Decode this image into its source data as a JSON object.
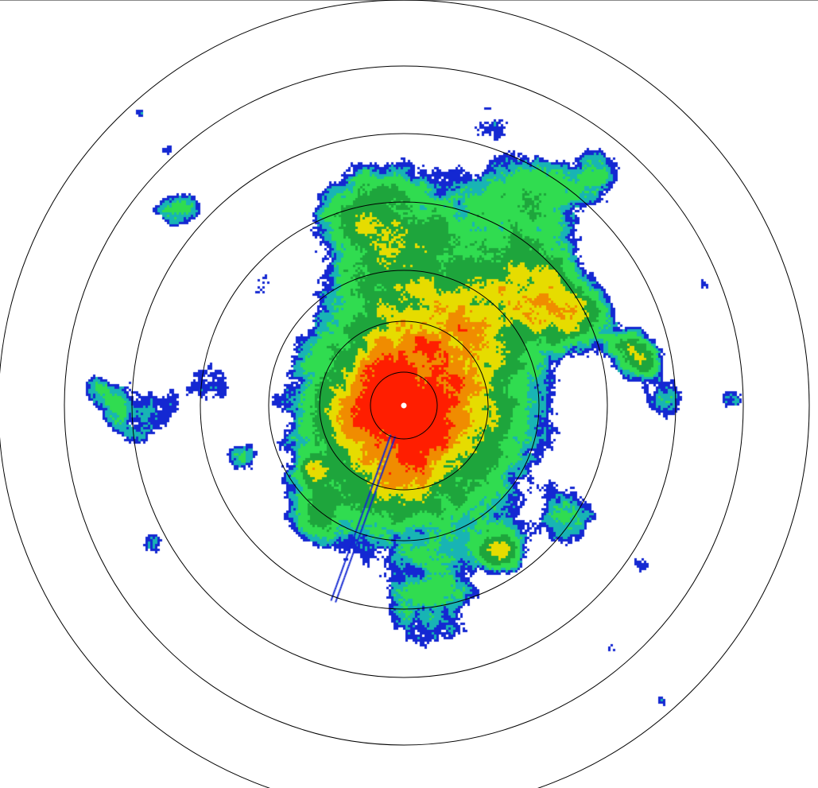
{
  "radar": {
    "product": "reflectivity",
    "range_ring_count": 7,
    "colors": {
      "blue": "#1428d2",
      "cyan": "#18b4b4",
      "green": "#1ea53c",
      "light_green": "#30dc50",
      "yellow": "#e6dc00",
      "orange": "#f08c00",
      "red": "#ff1e00",
      "ring": "#000000",
      "background": "#ffffff"
    }
  }
}
